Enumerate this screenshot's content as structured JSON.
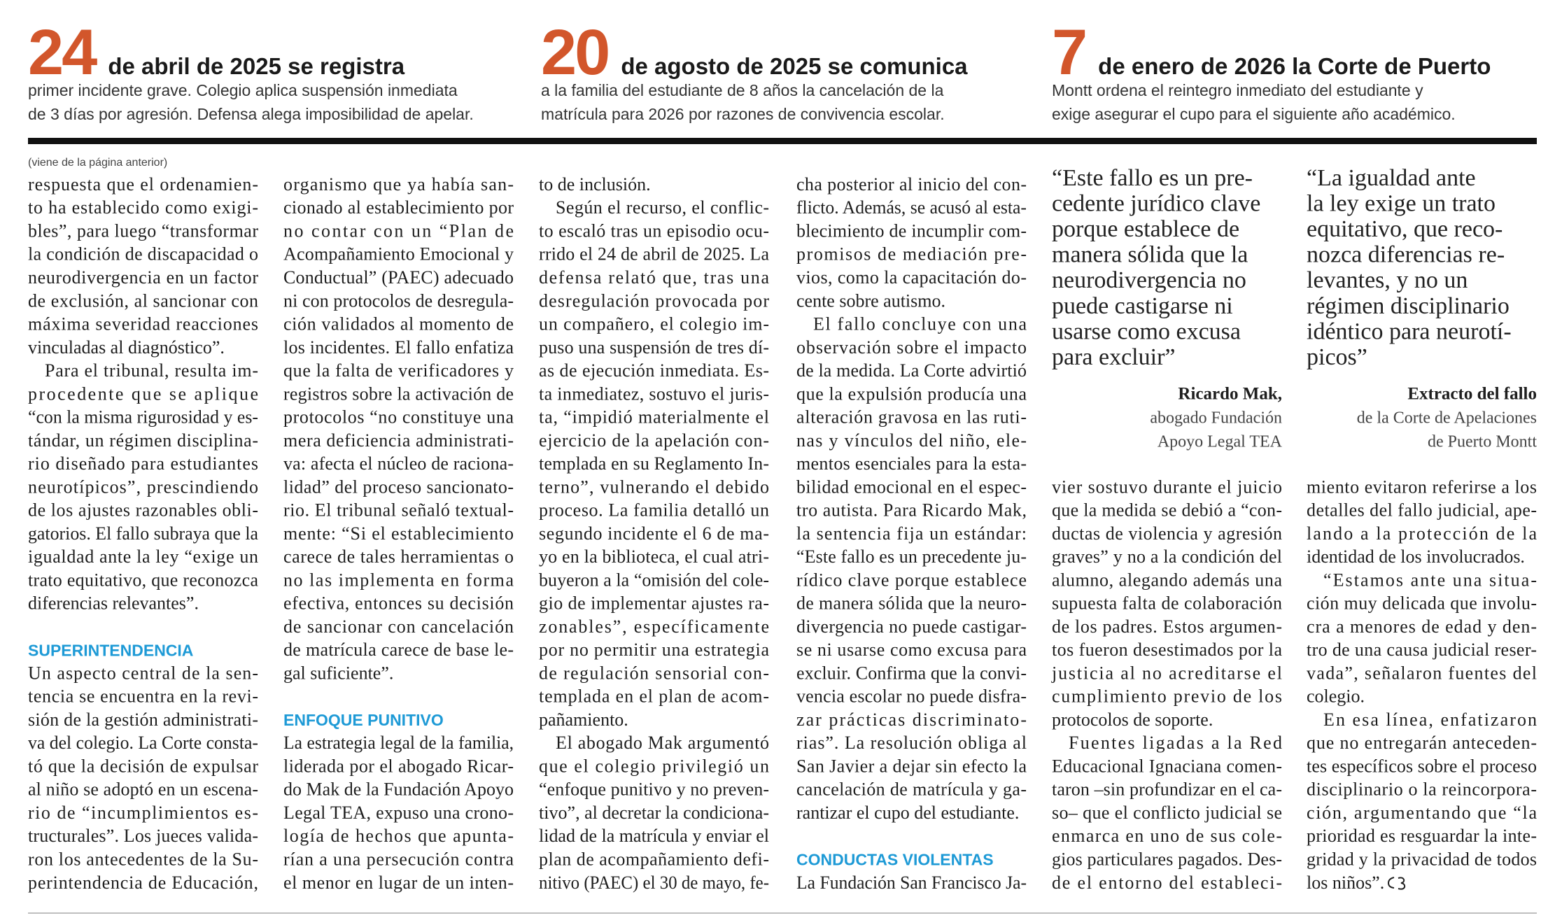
{
  "header": {
    "items": [
      {
        "number": "24",
        "headline": "de abril de 2025 se registra",
        "lines": [
          "primer incidente grave. Colegio aplica suspensión inmediata",
          "de 3 días por agresión. Defensa alega imposibilidad de apelar."
        ]
      },
      {
        "number": "20",
        "headline": "de agosto de 2025 se comunica",
        "lines": [
          "a la familia del estudiante de 8 años la cancelación de la",
          "matrícula para 2026 por razones de convivencia escolar."
        ]
      },
      {
        "number": "7",
        "headline": "de enero de 2026 la Corte de Puerto",
        "lines": [
          "Montt ordena el reintegro inmediato del estudiante y",
          "exige asegurar el cupo para el siguiente  año académico."
        ]
      }
    ]
  },
  "quotes": [
    {
      "lines": [
        "“Este fallo es un pre-",
        "cedente jurídico clave",
        "porque establece de",
        "manera sólida que la",
        "neurodivergencia no",
        "puede castigarse ni",
        "usarse como excusa",
        "para excluir”"
      ],
      "name": "Ricardo Mak,",
      "role": [
        "abogado Fundación",
        "Apoyo Legal TEA"
      ]
    },
    {
      "lines": [
        "“La igualdad ante",
        "la ley exige un trato",
        "equitativo, que reco-",
        "nozca diferencias re-",
        "levantes, y no un",
        "régimen disciplinario",
        "idéntico para neurotí-",
        "picos”"
      ],
      "name": "Extracto del fallo",
      "role": [
        "de la Corte de Apelaciones",
        "de Puerto Montt"
      ]
    }
  ],
  "body": {
    "note": "(viene de la página anterior)",
    "columns": [
      {
        "blocks": [
          {
            "paragraph": [
              "respuesta que el ordenamien-",
              "to ha establecido como exigi-",
              "bles”, para luego “transformar",
              "la condición de discapacidad o",
              "neurodivergencia en un factor",
              "de exclusión, al sancionar con",
              "máxima severidad reacciones",
              "vinculadas al diagnóstico”."
            ]
          },
          {
            "paragraph": [
              "Para el tribunal, resulta im-",
              "procedente que se aplique",
              "“con la misma rigurosidad y es-",
              "tándar, un régimen disciplina-",
              "rio diseñado para estudiantes",
              "neurotípicos”, prescindiendo",
              "de los ajustes razonables obli-",
              "gatorios. El fallo subraya que la",
              "igualdad ante la ley “exige un",
              "trato equitativo, que reconozca",
              "diferencias relevantes”."
            ]
          },
          {
            "heading": "SUPERINTENDENCIA"
          },
          {
            "paragraph": [
              "Un aspecto central de la sen-",
              "tencia se encuentra en la revi-",
              "sión de la gestión administrati-",
              "va del colegio. La Corte consta-",
              "tó que la decisión de expulsar",
              "al niño se adoptó en un escena-",
              "rio de “incumplimientos es-",
              "tructurales”. Los jueces valida-",
              "ron los antecedentes de la Su-",
              "perintendencia de Educación,"
            ]
          }
        ]
      },
      {
        "blocks": [
          {
            "paragraph": [
              "organismo que ya había san-",
              "cionado al establecimiento por",
              "no contar con un “Plan de",
              "Acompañamiento Emocional y",
              "Conductual” (PAEC) adecuado",
              "ni con protocolos de desregula-",
              "ción validados al momento de",
              "los incidentes. El fallo enfatiza",
              "que la falta de verificadores y",
              "registros sobre la activación de",
              "protocolos “no constituye una",
              "mera deficiencia administrati-",
              "va: afecta el núcleo de raciona-",
              "lidad” del proceso sancionato-",
              "rio. El tribunal señaló textual-",
              "mente: “Si el establecimiento",
              "carece de tales herramientas o",
              "no las implementa en forma",
              "efectiva, entonces su decisión",
              "de sancionar con cancelación",
              "de matrícula carece de base le-",
              "gal suficiente”."
            ]
          },
          {
            "heading": "ENFOQUE PUNITIVO"
          },
          {
            "paragraph": [
              "La estrategia legal de la familia,",
              "liderada por el abogado Ricar-",
              "do Mak de la Fundación Apoyo",
              "Legal TEA, expuso una crono-",
              "logía de hechos que apunta-",
              "rían a una persecución contra",
              "el menor en lugar de un inten-"
            ]
          }
        ]
      },
      {
        "blocks": [
          {
            "paragraph": [
              "to de inclusión."
            ]
          },
          {
            "paragraph": [
              "Según el recurso, el conflic-",
              "to escaló tras un episodio ocu-",
              "rrido el 24 de abril de 2025. La",
              "defensa relató que, tras una",
              "desregulación provocada por",
              "un compañero, el colegio im-",
              "puso una suspensión de tres dí-",
              "as de ejecución inmediata. Es-",
              "ta inmediatez, sostuvo el juris-",
              "ta, “impidió materialmente el",
              "ejercicio de la apelación con-",
              "templada en su Reglamento In-",
              "terno”, vulnerando el debido",
              "proceso. La familia detalló un",
              "segundo incidente el 6 de ma-",
              "yo en la biblioteca, el cual atri-",
              "buyeron a la “omisión del cole-",
              "gio de implementar ajustes ra-",
              "zonables”, específicamente",
              "por no permitir una estrategia",
              "de regulación sensorial con-",
              "templada en el plan de acom-",
              "pañamiento."
            ]
          },
          {
            "paragraph": [
              "El abogado Mak argumentó",
              "que el colegio privilegió un",
              "“enfoque punitivo y no preven-",
              "tivo”, al decretar la condiciona-",
              "lidad de la matrícula y enviar el",
              "plan de acompañamiento defi-",
              "nitivo (PAEC) el 30 de mayo, fe-"
            ]
          }
        ]
      },
      {
        "blocks": [
          {
            "paragraph": [
              "cha posterior al inicio del con-",
              "flicto. Además, se acusó al esta-",
              "blecimiento de incumplir com-",
              "promisos de mediación pre-",
              "vios, como la capacitación do-",
              "cente sobre autismo."
            ]
          },
          {
            "paragraph": [
              "El fallo concluye con una",
              "observación sobre el impacto",
              "de la medida. La Corte advirtió",
              "que la expulsión producía una",
              "alteración gravosa en las ruti-",
              "nas y vínculos del niño, ele-",
              "mentos esenciales para la esta-",
              "bilidad emocional en el espec-",
              "tro autista. Para Ricardo Mak,",
              "la sentencia fija un estándar:",
              "“Este fallo es un precedente ju-",
              "rídico clave porque establece",
              "de manera sólida que la neuro-",
              "divergencia no puede castigar-",
              "se ni usarse como excusa para",
              "excluir. Confirma que la convi-",
              "vencia escolar no puede disfra-",
              "zar prácticas discriminato-",
              "rias”. La resolución obliga al",
              "San Javier a dejar sin efecto la",
              "cancelación de matrícula y ga-",
              "rantizar el cupo del estudiante."
            ]
          },
          {
            "heading": "CONDUCTAS VIOLENTAS"
          },
          {
            "paragraph": [
              "La Fundación San Francisco Ja-"
            ]
          }
        ]
      },
      {
        "blocks": [
          {
            "paragraph": [
              "vier sostuvo durante el juicio",
              "que la medida se debió a “con-",
              "ductas de violencia y agresión",
              "graves” y no a la condición del",
              "alumno, alegando además una",
              "supuesta falta de colaboración",
              "de los padres.  Estos argumen-",
              "tos fueron desestimados por la",
              "justicia al no acreditarse el",
              "cumplimiento previo de los",
              "protocolos de soporte."
            ]
          },
          {
            "paragraph": [
              "Fuentes ligadas a la Red",
              "Educacional Ignaciana comen-",
              "taron –sin profundizar en el ca-",
              "so– que el conflicto judicial se",
              "enmarca en uno de sus cole-",
              "gios particulares pagados. Des-",
              "de el entorno del estableci-"
            ]
          }
        ]
      },
      {
        "blocks": [
          {
            "paragraph": [
              "miento evitaron referirse a los",
              "detalles del fallo judicial, ape-",
              "lando a la protección de la",
              "identidad de los involucrados."
            ]
          },
          {
            "paragraph": [
              "“Estamos ante una situa-",
              "ción muy delicada que involu-",
              "cra a menores de edad y den-",
              "tro de una causa judicial reser-",
              "vada”, señalaron fuentes del",
              "colegio."
            ]
          },
          {
            "paragraph": [
              "En esa línea, enfatizaron",
              "que no entregarán anteceden-",
              "tes específicos sobre el proceso",
              "disciplinario o la reincorpora-",
              "ción, argumentando que “la",
              "prioridad es resguardar la inte-",
              "gridad y la privacidad de todos",
              "los niños”."
            ]
          }
        ]
      }
    ]
  }
}
